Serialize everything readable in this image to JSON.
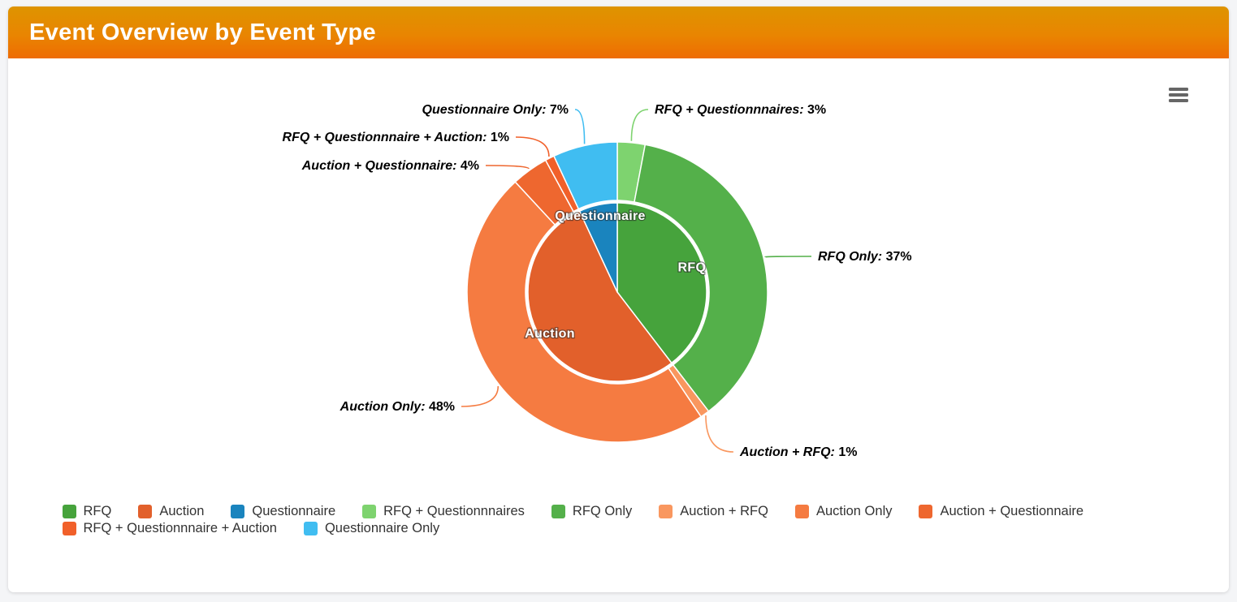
{
  "panel": {
    "title": "Event Overview by Event Type"
  },
  "toolbar": {
    "export_menu_icon": "hamburger-icon"
  },
  "colors": {
    "header_gradient_top": "#de9400",
    "header_gradient_bottom": "#ee6c03",
    "page_background": "#f4f5f7",
    "card_background": "#ffffff",
    "legend_text": "#333333",
    "hamburger_gray": "#666666"
  },
  "chart_data": {
    "type": "pie",
    "subtype": "two-level-donut",
    "title": "Event Overview by Event Type",
    "start_angle_deg": 0,
    "direction": "clockwise",
    "legend_position": "bottom",
    "grid": false,
    "inner_series": {
      "name": "Event Type",
      "slices": [
        {
          "name": "RFQ",
          "value": 40,
          "color": "#46a33c",
          "label": "RFQ"
        },
        {
          "name": "Auction",
          "value": 54,
          "color": "#e2602b",
          "label": "Auction"
        },
        {
          "name": "Questionnaire",
          "value": 7,
          "color": "#1a84be",
          "label": "Questionnaire"
        }
      ]
    },
    "outer_series": {
      "name": "Event Combination",
      "value_suffix": "%",
      "slices": [
        {
          "name": "RFQ + Questionnnaires",
          "value": 3,
          "color": "#7ed36f",
          "label_text": "RFQ + Questionnnaires: 3%"
        },
        {
          "name": "RFQ Only",
          "value": 37,
          "color": "#54b04a",
          "label_text": "RFQ Only: 37%"
        },
        {
          "name": "Auction + RFQ",
          "value": 1,
          "color": "#f9975f",
          "label_text": "Auction + RFQ: 1%"
        },
        {
          "name": "Auction Only",
          "value": 48,
          "color": "#f57b41",
          "label_text": "Auction Only: 48%"
        },
        {
          "name": "Auction + Questionnaire",
          "value": 4,
          "color": "#ee672f",
          "label_text": "Auction + Questionnaire: 4%"
        },
        {
          "name": "RFQ + Questionnnaire + Auction",
          "value": 1,
          "color": "#f1602a",
          "label_text": "RFQ + Questionnnaire + Auction: 1%"
        },
        {
          "name": "Questionnaire Only",
          "value": 7,
          "color": "#40bdf1",
          "label_text": "Questionnaire Only: 7%"
        }
      ]
    },
    "legend_order": [
      "RFQ",
      "Auction",
      "Questionnaire",
      "RFQ + Questionnnaires",
      "RFQ Only",
      "Auction + RFQ",
      "Auction Only",
      "Auction + Questionnaire",
      "RFQ + Questionnnaire + Auction",
      "Questionnaire Only"
    ]
  }
}
